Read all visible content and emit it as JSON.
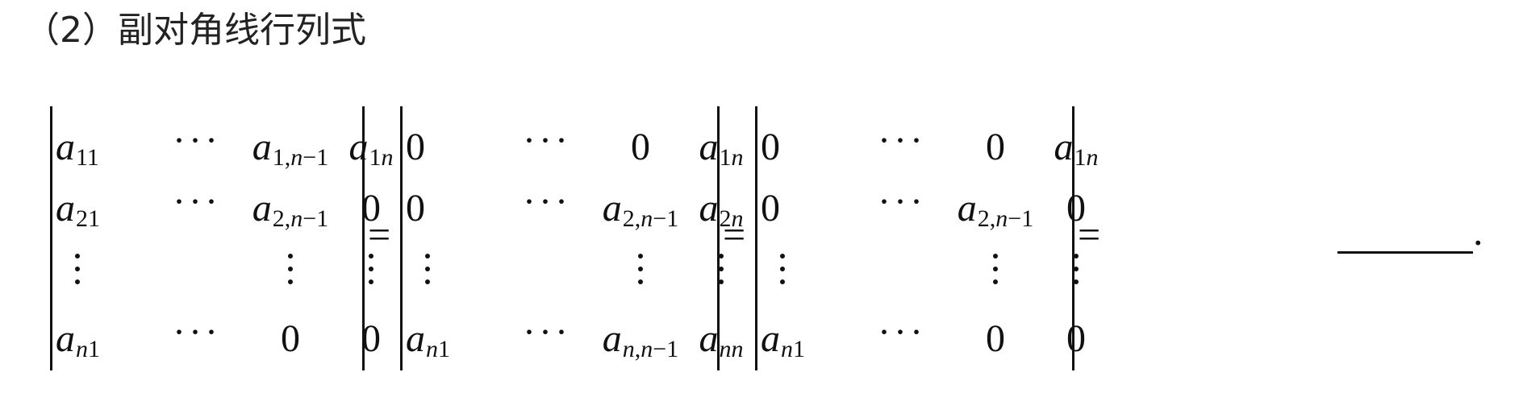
{
  "heading": "（2）副对角线行列式",
  "equals_sign": "=",
  "answer_blank": "",
  "period": ".",
  "determinants": [
    {
      "name": "det-1",
      "rows": [
        [
          {
            "t": "sub",
            "v": "a",
            "s": "11"
          },
          {
            "t": "dots"
          },
          {
            "t": "sub",
            "v": "a",
            "s": "1,n−1"
          },
          {
            "t": "sub",
            "v": "a",
            "s": "1n"
          }
        ],
        [
          {
            "t": "sub",
            "v": "a",
            "s": "21"
          },
          {
            "t": "dots"
          },
          {
            "t": "sub",
            "v": "a",
            "s": "2,n−1"
          },
          {
            "t": "num",
            "v": "0"
          }
        ],
        [
          {
            "t": "vdots"
          },
          {
            "t": "empty"
          },
          {
            "t": "vdots"
          },
          {
            "t": "vdots"
          }
        ],
        [
          {
            "t": "sub",
            "v": "a",
            "s": "n1"
          },
          {
            "t": "dots"
          },
          {
            "t": "num",
            "v": "0"
          },
          {
            "t": "num",
            "v": "0"
          }
        ]
      ]
    },
    {
      "name": "det-2",
      "rows": [
        [
          {
            "t": "num",
            "v": "0"
          },
          {
            "t": "dots"
          },
          {
            "t": "num",
            "v": "0"
          },
          {
            "t": "sub",
            "v": "a",
            "s": "1n"
          }
        ],
        [
          {
            "t": "num",
            "v": "0"
          },
          {
            "t": "dots"
          },
          {
            "t": "sub",
            "v": "a",
            "s": "2,n−1"
          },
          {
            "t": "sub",
            "v": "a",
            "s": "2n"
          }
        ],
        [
          {
            "t": "vdots"
          },
          {
            "t": "empty"
          },
          {
            "t": "vdots"
          },
          {
            "t": "vdots"
          }
        ],
        [
          {
            "t": "sub",
            "v": "a",
            "s": "n1"
          },
          {
            "t": "dots"
          },
          {
            "t": "sub",
            "v": "a",
            "s": "n,n−1"
          },
          {
            "t": "sub",
            "v": "a",
            "s": "nn"
          }
        ]
      ]
    },
    {
      "name": "det-3",
      "rows": [
        [
          {
            "t": "num",
            "v": "0"
          },
          {
            "t": "dots"
          },
          {
            "t": "num",
            "v": "0"
          },
          {
            "t": "sub",
            "v": "a",
            "s": "1n"
          }
        ],
        [
          {
            "t": "num",
            "v": "0"
          },
          {
            "t": "dots"
          },
          {
            "t": "sub",
            "v": "a",
            "s": "2,n−1"
          },
          {
            "t": "num",
            "v": "0"
          }
        ],
        [
          {
            "t": "vdots"
          },
          {
            "t": "empty"
          },
          {
            "t": "vdots"
          },
          {
            "t": "vdots"
          }
        ],
        [
          {
            "t": "sub",
            "v": "a",
            "s": "n1"
          },
          {
            "t": "dots"
          },
          {
            "t": "num",
            "v": "0"
          },
          {
            "t": "num",
            "v": "0"
          }
        ]
      ]
    }
  ]
}
